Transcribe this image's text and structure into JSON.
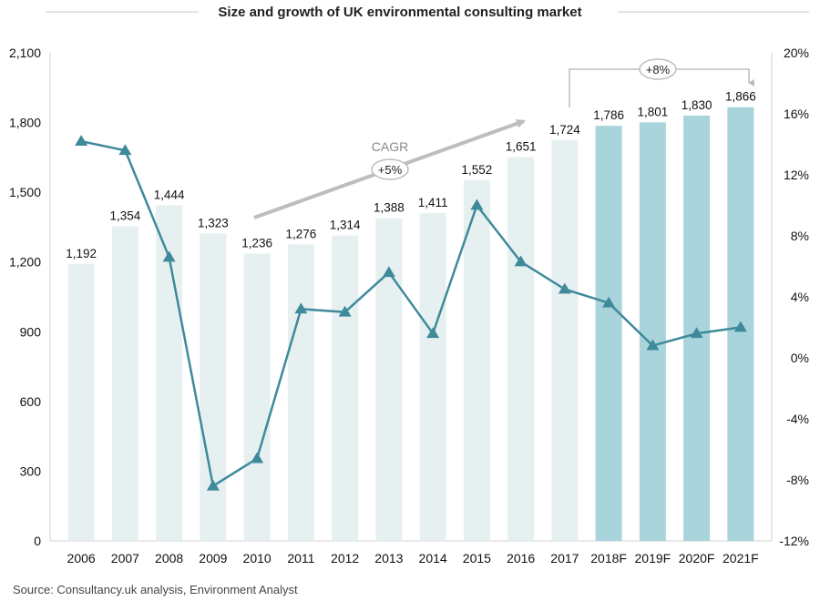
{
  "chart_data": {
    "type": "bar",
    "title": "Size and growth of UK environmental consulting market",
    "categories": [
      "2006",
      "2007",
      "2008",
      "2009",
      "2010",
      "2011",
      "2012",
      "2013",
      "2014",
      "2015",
      "2016",
      "2017",
      "2018F",
      "2019F",
      "2020F",
      "2021F"
    ],
    "series": [
      {
        "type": "bar",
        "values": [
          1192,
          1354,
          1444,
          1323,
          1236,
          1276,
          1314,
          1388,
          1411,
          1552,
          1651,
          1724,
          1786,
          1801,
          1830,
          1866
        ],
        "labels": [
          "1,192",
          "1,354",
          "1,444",
          "1,323",
          "1,236",
          "1,276",
          "1,314",
          "1,388",
          "1,411",
          "1,552",
          "1,651",
          "1,724",
          "1,786",
          "1,801",
          "1,830",
          "1,866"
        ]
      },
      {
        "type": "line",
        "axis": "right",
        "values": [
          14.2,
          13.6,
          6.6,
          -8.4,
          -6.6,
          3.2,
          3.0,
          5.6,
          1.6,
          10.0,
          6.3,
          4.5,
          3.6,
          0.8,
          1.6,
          2.0
        ]
      }
    ],
    "y_left": {
      "range": [
        0,
        2100
      ],
      "ticks": [
        "0",
        "300",
        "600",
        "900",
        "1,200",
        "1,500",
        "1,800",
        "2,100"
      ],
      "tick_values": [
        0,
        300,
        600,
        900,
        1200,
        1500,
        1800,
        2100
      ]
    },
    "y_right": {
      "range": [
        -12,
        20
      ],
      "ticks": [
        "-12%",
        "-8%",
        "-4%",
        "0%",
        "4%",
        "8%",
        "12%",
        "16%",
        "20%"
      ],
      "tick_values": [
        -12,
        -8,
        -4,
        0,
        4,
        8,
        12,
        16,
        20
      ]
    },
    "annotations": {
      "cagr_label": "CAGR",
      "cagr_value": "+5%",
      "forecast_growth": "+8%"
    },
    "source": "Source: Consultancy.uk analysis, Environment Analyst",
    "colors": {
      "bar_actual": "#e6f0f1",
      "bar_forecast": "#a9d4dc",
      "line": "#3e8a9b",
      "arrow": "#bdbdbd",
      "axis": "#cccccc"
    },
    "grid": false
  }
}
